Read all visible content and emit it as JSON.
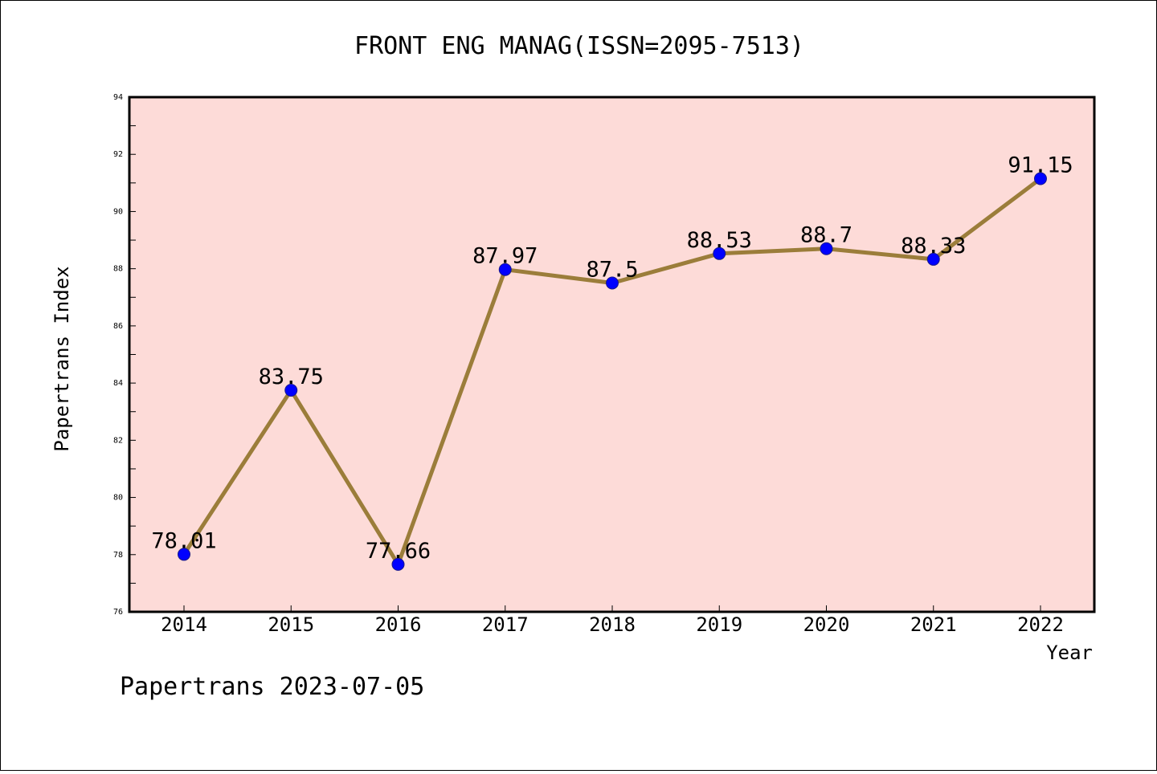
{
  "chart_data": {
    "type": "line",
    "title": "FRONT ENG MANAG(ISSN=2095-7513)",
    "xlabel": "Year",
    "ylabel": "Papertrans Index",
    "categories": [
      "2014",
      "2015",
      "2016",
      "2017",
      "2018",
      "2019",
      "2020",
      "2021",
      "2022"
    ],
    "values": [
      78.01,
      83.75,
      77.66,
      87.97,
      87.5,
      88.53,
      88.7,
      88.33,
      91.15
    ],
    "data_labels": [
      "78.01",
      "83.75",
      "77.66",
      "87.97",
      "87.5",
      "88.53",
      "88.7",
      "88.33",
      "91.15"
    ],
    "ylim": [
      76,
      94
    ],
    "yticks": [
      "76",
      "78",
      "80",
      "82",
      "84",
      "86",
      "88",
      "90",
      "92",
      "94"
    ],
    "grid": false,
    "plot_background": "#fddbd8",
    "line_color": "#9b7d3a",
    "marker_color": "#0000ff",
    "footer": "Papertrans 2023-07-05"
  }
}
